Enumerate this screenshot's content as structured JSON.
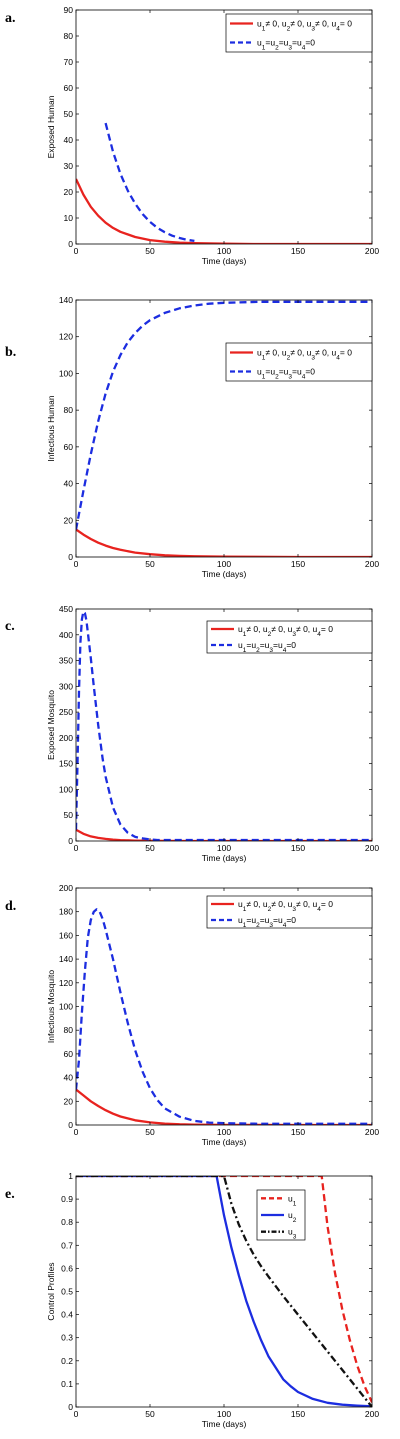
{
  "colors": {
    "red": "#e8231f",
    "blue": "#1c2de0",
    "black": "#111111"
  },
  "chart_data": [
    {
      "type": "line",
      "panel_label": "a.",
      "xlabel": "Time (days)",
      "ylabel": "Exposed Human",
      "xlim": [
        0,
        200
      ],
      "ylim": [
        0,
        90
      ],
      "xticks": [
        0,
        50,
        100,
        150,
        200
      ],
      "yticks": [
        0,
        10,
        20,
        30,
        40,
        50,
        60,
        70,
        80,
        90
      ],
      "legend": "top-right",
      "series": [
        {
          "name": "u₁≠ 0, u₂≠ 0, u₃≠ 0, u₄= 0",
          "color": "#e8231f",
          "dash": "solid",
          "x": [
            0,
            5,
            10,
            15,
            20,
            25,
            30,
            40,
            50,
            60,
            70,
            80,
            100,
            120,
            150,
            200
          ],
          "y": [
            25,
            19,
            14.3,
            10.9,
            8.2,
            6.2,
            4.7,
            2.7,
            1.5,
            0.9,
            0.5,
            0.3,
            0.1,
            0,
            0,
            0
          ]
        },
        {
          "name": "u₁=u₂=u₃=u₄=0",
          "color": "#1c2de0",
          "dash": "dashed",
          "x": [
            20,
            25,
            30,
            35,
            40,
            45,
            50,
            55,
            60,
            65,
            70,
            75,
            80
          ],
          "y": [
            46.5,
            35.5,
            27,
            20.5,
            15.5,
            11.5,
            8.5,
            6.2,
            4.5,
            3.2,
            2.3,
            1.6,
            1.2
          ]
        }
      ]
    },
    {
      "type": "line",
      "panel_label": "b.",
      "xlabel": "Time (days)",
      "ylabel": "Infectious Human",
      "xlim": [
        0,
        200
      ],
      "ylim": [
        0,
        140
      ],
      "xticks": [
        0,
        50,
        100,
        150,
        200
      ],
      "yticks": [
        0,
        20,
        40,
        60,
        80,
        100,
        120,
        140
      ],
      "legend": "top-right",
      "series": [
        {
          "name": "u₁≠ 0, u₂≠ 0, u₃≠ 0, u₄= 0",
          "color": "#e8231f",
          "dash": "solid",
          "x": [
            0,
            5,
            10,
            15,
            20,
            25,
            30,
            40,
            50,
            60,
            70,
            80,
            100,
            120,
            150,
            200
          ],
          "y": [
            15,
            12.2,
            9.8,
            7.8,
            6.2,
            4.9,
            3.9,
            2.4,
            1.5,
            0.9,
            0.6,
            0.4,
            0.2,
            0.1,
            0,
            0
          ]
        },
        {
          "name": "u₁=u₂=u₃=u₄=0",
          "color": "#1c2de0",
          "dash": "dashed",
          "x": [
            0,
            5,
            10,
            15,
            20,
            25,
            30,
            35,
            40,
            45,
            50,
            60,
            70,
            80,
            90,
            100,
            125,
            150,
            175,
            200
          ],
          "y": [
            15,
            36,
            56,
            74,
            89,
            101,
            110,
            117,
            122,
            126,
            129,
            133,
            135.5,
            137,
            138,
            138.5,
            139,
            139,
            139,
            139
          ]
        }
      ]
    },
    {
      "type": "line",
      "panel_label": "c.",
      "xlabel": "Time (days)",
      "ylabel": "Exposed Mosquito",
      "xlim": [
        0,
        200
      ],
      "ylim": [
        0,
        450
      ],
      "xticks": [
        0,
        50,
        100,
        150,
        200
      ],
      "yticks": [
        0,
        50,
        100,
        150,
        200,
        250,
        300,
        350,
        400,
        450
      ],
      "legend": "top-right",
      "series": [
        {
          "name": "u₁≠ 0, u₂≠ 0, u₃≠ 0, u₄= 0",
          "color": "#e8231f",
          "dash": "solid",
          "x": [
            0,
            5,
            10,
            15,
            20,
            25,
            30,
            40,
            50,
            60,
            80,
            100,
            150,
            200
          ],
          "y": [
            22,
            14,
            9,
            6,
            4,
            2.7,
            1.8,
            0.8,
            0.3,
            0.1,
            0,
            0,
            0,
            0
          ]
        },
        {
          "name": "u₁=u₂=u₃=u₄=0",
          "color": "#1c2de0",
          "dash": "dashed",
          "x": [
            0,
            1,
            2,
            3,
            4,
            5,
            6,
            7,
            8,
            10,
            12,
            15,
            18,
            20,
            25,
            30,
            35,
            40,
            45,
            50,
            55,
            60,
            80,
            100,
            150,
            200
          ],
          "y": [
            22,
            150,
            290,
            385,
            430,
            445,
            442,
            428,
            405,
            355,
            300,
            225,
            160,
            125,
            65,
            32,
            16,
            8,
            5,
            3,
            2,
            2,
            2,
            2,
            2,
            2
          ]
        }
      ]
    },
    {
      "type": "line",
      "panel_label": "d.",
      "xlabel": "Time (days)",
      "ylabel": "Infectious Mosquito",
      "xlim": [
        0,
        200
      ],
      "ylim": [
        0,
        200
      ],
      "xticks": [
        0,
        50,
        100,
        150,
        200
      ],
      "yticks": [
        0,
        20,
        40,
        60,
        80,
        100,
        120,
        140,
        160,
        180,
        200
      ],
      "legend": "top-right",
      "series": [
        {
          "name": "u₁≠ 0, u₂≠ 0, u₃≠ 0, u₄= 0",
          "color": "#e8231f",
          "dash": "solid",
          "x": [
            0,
            5,
            10,
            15,
            20,
            25,
            30,
            40,
            50,
            60,
            70,
            80,
            100,
            150,
            200
          ],
          "y": [
            30,
            25,
            20,
            16,
            12.5,
            9.5,
            7.2,
            4,
            2.2,
            1.2,
            0.6,
            0.3,
            0.1,
            0,
            0
          ]
        },
        {
          "name": "u₁=u₂=u₃=u₄=0",
          "color": "#1c2de0",
          "dash": "dashed",
          "x": [
            0,
            2,
            4,
            6,
            8,
            10,
            12,
            14,
            16,
            18,
            20,
            25,
            30,
            35,
            40,
            45,
            50,
            55,
            60,
            70,
            80,
            90,
            100,
            125,
            150,
            200
          ],
          "y": [
            30,
            55,
            95,
            130,
            158,
            173,
            180,
            182,
            180,
            174,
            165,
            140,
            112,
            86,
            63,
            45,
            31,
            21,
            14,
            7,
            3.5,
            2,
            1.5,
            1,
            1,
            1
          ]
        }
      ]
    },
    {
      "type": "line",
      "panel_label": "e.",
      "xlabel": "Time (days)",
      "ylabel": "Control Profiles",
      "xlim": [
        0,
        200
      ],
      "ylim": [
        0,
        1
      ],
      "xticks": [
        0,
        50,
        100,
        150,
        200
      ],
      "yticks": [
        0,
        0.1,
        0.2,
        0.3,
        0.4,
        0.5,
        0.6,
        0.7,
        0.8,
        0.9,
        1
      ],
      "legend": "top-right",
      "series": [
        {
          "name": "u₁",
          "color": "#e8231f",
          "dash": "dashed",
          "x": [
            0,
            166,
            170,
            175,
            180,
            185,
            190,
            195,
            200
          ],
          "y": [
            1,
            1,
            0.78,
            0.58,
            0.42,
            0.29,
            0.18,
            0.09,
            0.02
          ]
        },
        {
          "name": "u₂",
          "color": "#1c2de0",
          "dash": "solid",
          "x": [
            0,
            95,
            100,
            105,
            110,
            115,
            120,
            125,
            130,
            135,
            140,
            145,
            150,
            160,
            170,
            180,
            190,
            200
          ],
          "y": [
            1,
            1,
            0.83,
            0.69,
            0.57,
            0.46,
            0.37,
            0.29,
            0.22,
            0.17,
            0.12,
            0.09,
            0.065,
            0.035,
            0.018,
            0.01,
            0.006,
            0.003
          ]
        },
        {
          "name": "u₃",
          "color": "#111111",
          "dash": "dashdot",
          "x": [
            0,
            100,
            105,
            110,
            115,
            120,
            125,
            130,
            140,
            150,
            160,
            170,
            180,
            190,
            200
          ],
          "y": [
            1,
            1,
            0.88,
            0.79,
            0.72,
            0.66,
            0.61,
            0.565,
            0.48,
            0.4,
            0.32,
            0.24,
            0.16,
            0.08,
            0.0
          ]
        }
      ]
    }
  ]
}
